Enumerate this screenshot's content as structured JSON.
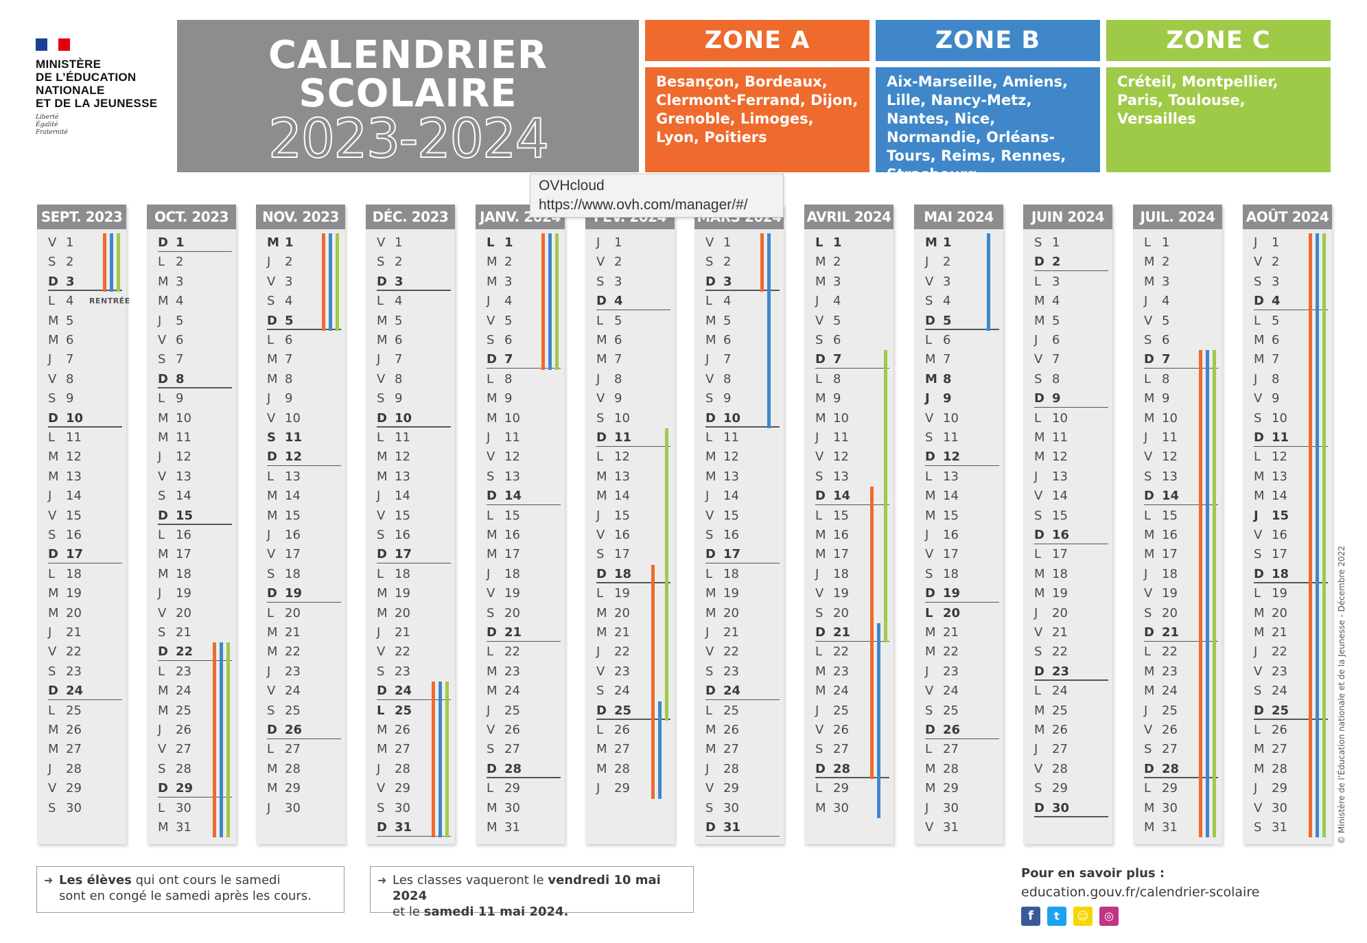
{
  "logo": {
    "lines": [
      "MINISTÈRE",
      "DE L’ÉDUCATION",
      "NATIONALE",
      "ET DE LA JEUNESSE"
    ],
    "motto": [
      "Liberté",
      "Égalité",
      "Fraternité"
    ]
  },
  "title": {
    "line1": "CALENDRIER",
    "line2": "SCOLAIRE",
    "line3": "2023-2024"
  },
  "colors": {
    "zoneA": "#ef6a2d",
    "zoneB": "#3f87c9",
    "zoneC": "#9fca48",
    "header": "#8d8d8f"
  },
  "zones": [
    {
      "label": "ZONE A",
      "cities": "Besançon, Bordeaux, Clermont-Ferrand, Dijon, Grenoble, Limoges, Lyon, Poitiers"
    },
    {
      "label": "ZONE B",
      "cities": "Aix-Marseille, Amiens, Lille, Nancy-Metz, Nantes, Nice, Normandie, Orléans-Tours, Reims, Rennes, Strasbourg"
    },
    {
      "label": "ZONE C",
      "cities": "Créteil, Montpellier, Paris, Toulouse, Versailles"
    }
  ],
  "tooltip": {
    "title": "OVHcloud",
    "url": "https://www.ovh.com/manager/#/"
  },
  "months": [
    {
      "label": "SEPT. 2023",
      "days": 30,
      "firstDow": 5,
      "bold": [],
      "notes": {
        "4": "RENTRÉE"
      },
      "bars": [
        {
          "zone": "A",
          "from": 1,
          "to": 3
        },
        {
          "zone": "B",
          "from": 1,
          "to": 3
        },
        {
          "zone": "C",
          "from": 1,
          "to": 3
        }
      ]
    },
    {
      "label": "OCT. 2023",
      "days": 31,
      "firstDow": 0,
      "bold": [],
      "notes": {},
      "bars": [
        {
          "zone": "A",
          "from": 22,
          "to": 31
        },
        {
          "zone": "B",
          "from": 22,
          "to": 31
        },
        {
          "zone": "C",
          "from": 22,
          "to": 31
        }
      ]
    },
    {
      "label": "NOV. 2023",
      "days": 30,
      "firstDow": 3,
      "bold": [
        1,
        11
      ],
      "notes": {},
      "bars": [
        {
          "zone": "A",
          "from": 1,
          "to": 5
        },
        {
          "zone": "B",
          "from": 1,
          "to": 5
        },
        {
          "zone": "C",
          "from": 1,
          "to": 5
        }
      ]
    },
    {
      "label": "DÉC. 2023",
      "days": 31,
      "firstDow": 5,
      "bold": [
        25
      ],
      "notes": {},
      "bars": [
        {
          "zone": "A",
          "from": 24,
          "to": 31
        },
        {
          "zone": "B",
          "from": 24,
          "to": 31
        },
        {
          "zone": "C",
          "from": 24,
          "to": 31
        }
      ]
    },
    {
      "label": "JANV. 2024",
      "days": 31,
      "firstDow": 1,
      "bold": [
        1
      ],
      "notes": {},
      "bars": [
        {
          "zone": "A",
          "from": 1,
          "to": 7
        },
        {
          "zone": "B",
          "from": 1,
          "to": 7
        },
        {
          "zone": "C",
          "from": 1,
          "to": 7
        }
      ]
    },
    {
      "label": "FÉV. 2024",
      "days": 29,
      "firstDow": 4,
      "bold": [],
      "notes": {},
      "bars": [
        {
          "zone": "A",
          "from": 18,
          "to": 29
        },
        {
          "zone": "B",
          "from": 25,
          "to": 29
        },
        {
          "zone": "C",
          "from": 11,
          "to": 25
        }
      ]
    },
    {
      "label": "MARS 2024",
      "days": 31,
      "firstDow": 5,
      "bold": [],
      "notes": {},
      "bars": [
        {
          "zone": "A",
          "from": 1,
          "to": 3
        },
        {
          "zone": "B",
          "from": 1,
          "to": 10
        }
      ]
    },
    {
      "label": "AVRIL 2024",
      "days": 30,
      "firstDow": 1,
      "bold": [
        1
      ],
      "notes": {},
      "bars": [
        {
          "zone": "A",
          "from": 14,
          "to": 28
        },
        {
          "zone": "B",
          "from": 21,
          "to": 30
        },
        {
          "zone": "C",
          "from": 7,
          "to": 21
        }
      ]
    },
    {
      "label": "MAI 2024",
      "days": 31,
      "firstDow": 3,
      "bold": [
        1,
        8,
        9,
        20
      ],
      "notes": {},
      "bars": [
        {
          "zone": "B",
          "from": 1,
          "to": 5
        }
      ]
    },
    {
      "label": "JUIN 2024",
      "days": 30,
      "firstDow": 6,
      "bold": [],
      "notes": {},
      "bars": []
    },
    {
      "label": "JUIL. 2024",
      "days": 31,
      "firstDow": 1,
      "bold": [],
      "notes": {},
      "bars": [
        {
          "zone": "A",
          "from": 7,
          "to": 31
        },
        {
          "zone": "B",
          "from": 7,
          "to": 31
        },
        {
          "zone": "C",
          "from": 7,
          "to": 31
        }
      ]
    },
    {
      "label": "AOÛT 2024",
      "days": 31,
      "firstDow": 4,
      "bold": [
        15
      ],
      "notes": {},
      "bars": [
        {
          "zone": "A",
          "from": 1,
          "to": 31
        },
        {
          "zone": "B",
          "from": 1,
          "to": 31
        },
        {
          "zone": "C",
          "from": 1,
          "to": 31
        }
      ]
    }
  ],
  "dayLetters": [
    "D",
    "L",
    "M",
    "M",
    "J",
    "V",
    "S"
  ],
  "note1": {
    "bold": "Les élèves",
    "rest": " qui ont cours le samedi",
    "line2": "sont en congé le samedi après les cours."
  },
  "note2": {
    "pre": "Les classes vaqueront le ",
    "bold1": "vendredi 10 mai 2024",
    "line2pre": "et le ",
    "bold2": "samedi 11 mai 2024."
  },
  "more": {
    "title": "Pour en savoir plus :",
    "url": "education.gouv.fr/calendrier-scolaire"
  },
  "social": [
    "facebook-icon",
    "twitter-icon",
    "snapchat-icon",
    "instagram-icon"
  ],
  "copyright": "© Ministère de l’Éducation nationale et de la Jeunesse - Décembre 2022"
}
